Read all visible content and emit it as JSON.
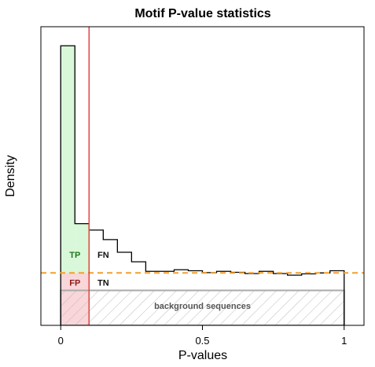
{
  "chart_data": {
    "type": "histogram",
    "title": "Motif P-value statistics",
    "xlabel": "P-values",
    "ylabel": "Density",
    "xlim": [
      -0.07,
      1.07
    ],
    "ylim": [
      0,
      9.4
    ],
    "x_ticks": [
      {
        "value": 0,
        "label": "0"
      },
      {
        "value": 0.5,
        "label": "0.5"
      },
      {
        "value": 1,
        "label": "1"
      }
    ],
    "bin_width": 0.05,
    "histogram": [
      {
        "x0": 0.0,
        "x1": 0.05,
        "density": 8.8
      },
      {
        "x0": 0.05,
        "x1": 0.1,
        "density": 3.2
      },
      {
        "x0": 0.1,
        "x1": 0.15,
        "density": 3.0
      },
      {
        "x0": 0.15,
        "x1": 0.2,
        "density": 2.7
      },
      {
        "x0": 0.2,
        "x1": 0.25,
        "density": 2.3
      },
      {
        "x0": 0.25,
        "x1": 0.3,
        "density": 2.0
      },
      {
        "x0": 0.3,
        "x1": 0.35,
        "density": 1.7
      },
      {
        "x0": 0.35,
        "x1": 0.4,
        "density": 1.7
      },
      {
        "x0": 0.4,
        "x1": 0.45,
        "density": 1.75
      },
      {
        "x0": 0.45,
        "x1": 0.5,
        "density": 1.72
      },
      {
        "x0": 0.5,
        "x1": 0.55,
        "density": 1.66
      },
      {
        "x0": 0.55,
        "x1": 0.6,
        "density": 1.7
      },
      {
        "x0": 0.6,
        "x1": 0.65,
        "density": 1.67
      },
      {
        "x0": 0.65,
        "x1": 0.7,
        "density": 1.63
      },
      {
        "x0": 0.7,
        "x1": 0.75,
        "density": 1.7
      },
      {
        "x0": 0.75,
        "x1": 0.8,
        "density": 1.63
      },
      {
        "x0": 0.8,
        "x1": 0.85,
        "density": 1.58
      },
      {
        "x0": 0.85,
        "x1": 0.9,
        "density": 1.62
      },
      {
        "x0": 0.9,
        "x1": 0.95,
        "density": 1.65
      },
      {
        "x0": 0.95,
        "x1": 1.0,
        "density": 1.72
      }
    ],
    "threshold_pvalue": 0.1,
    "uniform_density": 1.65,
    "background_density": 1.1,
    "regions": [
      {
        "label": "TP",
        "color": "#1f7a1f",
        "fill": "#d9f7d9"
      },
      {
        "label": "FP",
        "color": "#8b1a1a",
        "fill": "#f9d6d9"
      },
      {
        "label": "FN",
        "color": "#111111"
      },
      {
        "label": "TN",
        "color": "#111111"
      }
    ],
    "background_label": "background sequences",
    "colors": {
      "histogram": "#000000",
      "threshold_line": "#e0443c",
      "uniform_line": "#f0a030",
      "background_box": "#aaaaaa",
      "hatch": "#bbbbbb",
      "axes": "#000000"
    },
    "grid": false,
    "legend": "none"
  }
}
